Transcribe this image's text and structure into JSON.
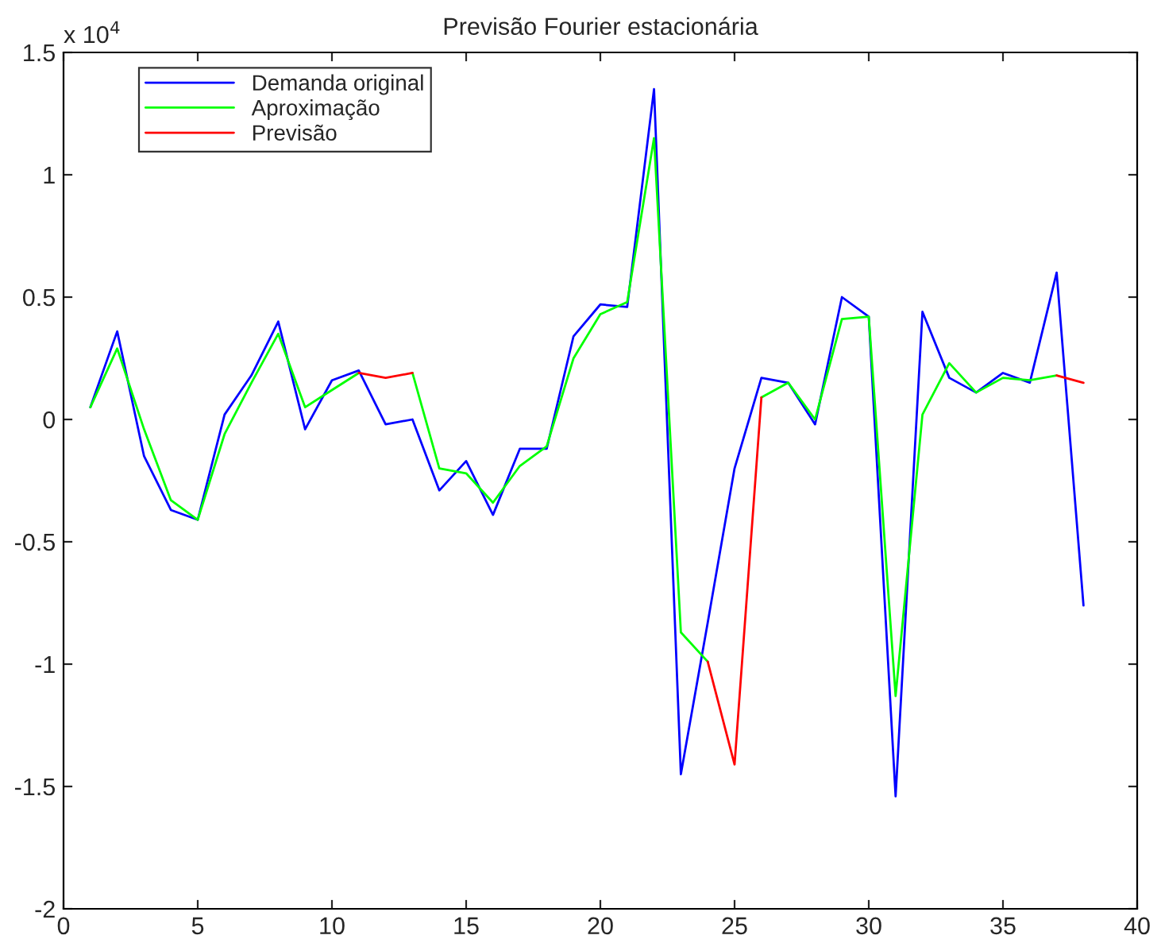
{
  "chart_data": {
    "type": "line",
    "title": "Previsão Fourier estacionária",
    "annotations": [
      "x 10$^{4}$"
    ],
    "x": [
      1,
      2,
      3,
      4,
      5,
      6,
      7,
      8,
      9,
      10,
      11,
      12,
      13,
      14,
      15,
      16,
      17,
      18,
      19,
      20,
      21,
      22,
      23,
      24,
      25,
      26,
      27,
      28,
      29,
      30,
      31,
      32,
      33,
      34,
      35,
      36,
      37,
      38
    ],
    "series": [
      {
        "name": "Demanda original",
        "color": "#0000ff",
        "values": [
          0.05,
          0.36,
          -0.15,
          -0.37,
          -0.41,
          0.02,
          0.18,
          0.4,
          -0.04,
          0.16,
          0.2,
          -0.02,
          0.0,
          -0.29,
          -0.17,
          -0.39,
          -0.12,
          -0.12,
          0.34,
          0.47,
          0.46,
          1.35,
          -1.45,
          -0.83,
          -0.2,
          0.17,
          0.15,
          -0.02,
          0.5,
          0.42,
          -1.54,
          0.44,
          0.17,
          0.11,
          0.19,
          0.15,
          0.6,
          -0.76
        ]
      },
      {
        "name": "Aproximação",
        "color": "#00ff00",
        "values": [
          0.05,
          0.29,
          -0.04,
          -0.33,
          -0.41,
          -0.06,
          0.15,
          0.35,
          0.05,
          0.12,
          0.19,
          null,
          0.19,
          -0.2,
          -0.22,
          -0.34,
          -0.19,
          -0.11,
          0.25,
          0.43,
          0.48,
          1.15,
          -0.87,
          -0.99,
          null,
          0.09,
          0.15,
          0.0,
          0.41,
          0.42,
          -1.13,
          0.02,
          0.23,
          0.11,
          0.17,
          0.16,
          0.18,
          null
        ]
      },
      {
        "name": "Previsão",
        "color": "#ff0000",
        "values": [
          null,
          null,
          null,
          null,
          null,
          null,
          null,
          null,
          null,
          null,
          0.19,
          0.17,
          0.19,
          null,
          null,
          null,
          null,
          null,
          null,
          null,
          null,
          null,
          null,
          -0.99,
          -1.41,
          0.09,
          null,
          null,
          null,
          null,
          null,
          null,
          null,
          null,
          null,
          null,
          0.18,
          0.15
        ]
      }
    ],
    "xlim": [
      0,
      40
    ],
    "xticks": [
      0,
      5,
      10,
      15,
      20,
      25,
      30,
      35,
      40
    ],
    "ylim": [
      -2,
      1.5
    ],
    "yticks": [
      -2,
      -1.5,
      -1,
      -0.5,
      0,
      0.5,
      1,
      1.5
    ],
    "legend": "top left",
    "grid": false,
    "marker": "none",
    "line_style": "solid"
  }
}
